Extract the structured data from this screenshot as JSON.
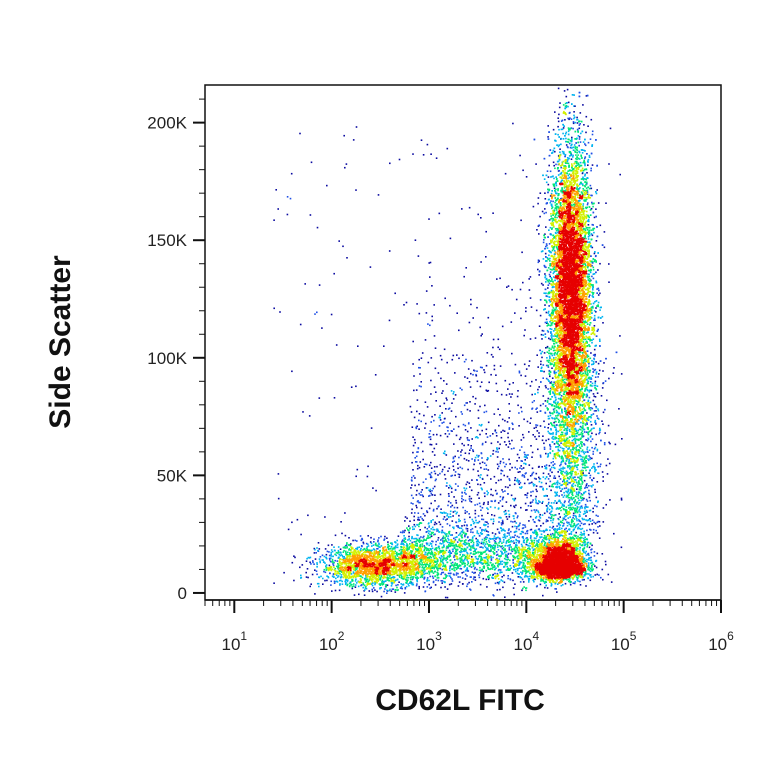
{
  "chart_data": {
    "type": "scatter",
    "title": "",
    "xlabel": "CD62L FITC",
    "ylabel": "Side Scatter",
    "x_scale": "log",
    "xlim": [
      5,
      1000000
    ],
    "ylim": [
      -3000,
      216000
    ],
    "grid": false,
    "x_ticks": [
      {
        "base": "10",
        "exp": "1",
        "value": 10
      },
      {
        "base": "10",
        "exp": "2",
        "value": 100
      },
      {
        "base": "10",
        "exp": "3",
        "value": 1000
      },
      {
        "base": "10",
        "exp": "4",
        "value": 10000
      },
      {
        "base": "10",
        "exp": "5",
        "value": 100000
      },
      {
        "base": "10",
        "exp": "6",
        "value": 1000000
      }
    ],
    "y_ticks": [
      {
        "label": "0",
        "value": 0
      },
      {
        "label": "50K",
        "value": 50000
      },
      {
        "label": "100K",
        "value": 100000
      },
      {
        "label": "150K",
        "value": 150000
      },
      {
        "label": "200K",
        "value": 200000
      }
    ],
    "color_scale": [
      "#0a0aa0",
      "#1f50e6",
      "#00b4f0",
      "#00e678",
      "#d2f000",
      "#ffa000",
      "#e60000"
    ],
    "populations": [
      {
        "x_center": 28000,
        "x_spread_log": 0.12,
        "y_center": 130000,
        "y_spread": 32000,
        "density": "high"
      },
      {
        "x_center": 22000,
        "x_spread_log": 0.13,
        "y_center": 12000,
        "y_spread": 5500,
        "density": "high"
      },
      {
        "x_center": 280,
        "x_spread_log": 0.3,
        "y_center": 12000,
        "y_spread": 5000,
        "density": "medium"
      },
      {
        "x_center": 4000,
        "x_spread_log": 0.6,
        "y_center": 40000,
        "y_spread": 35000,
        "density": "low"
      }
    ]
  }
}
